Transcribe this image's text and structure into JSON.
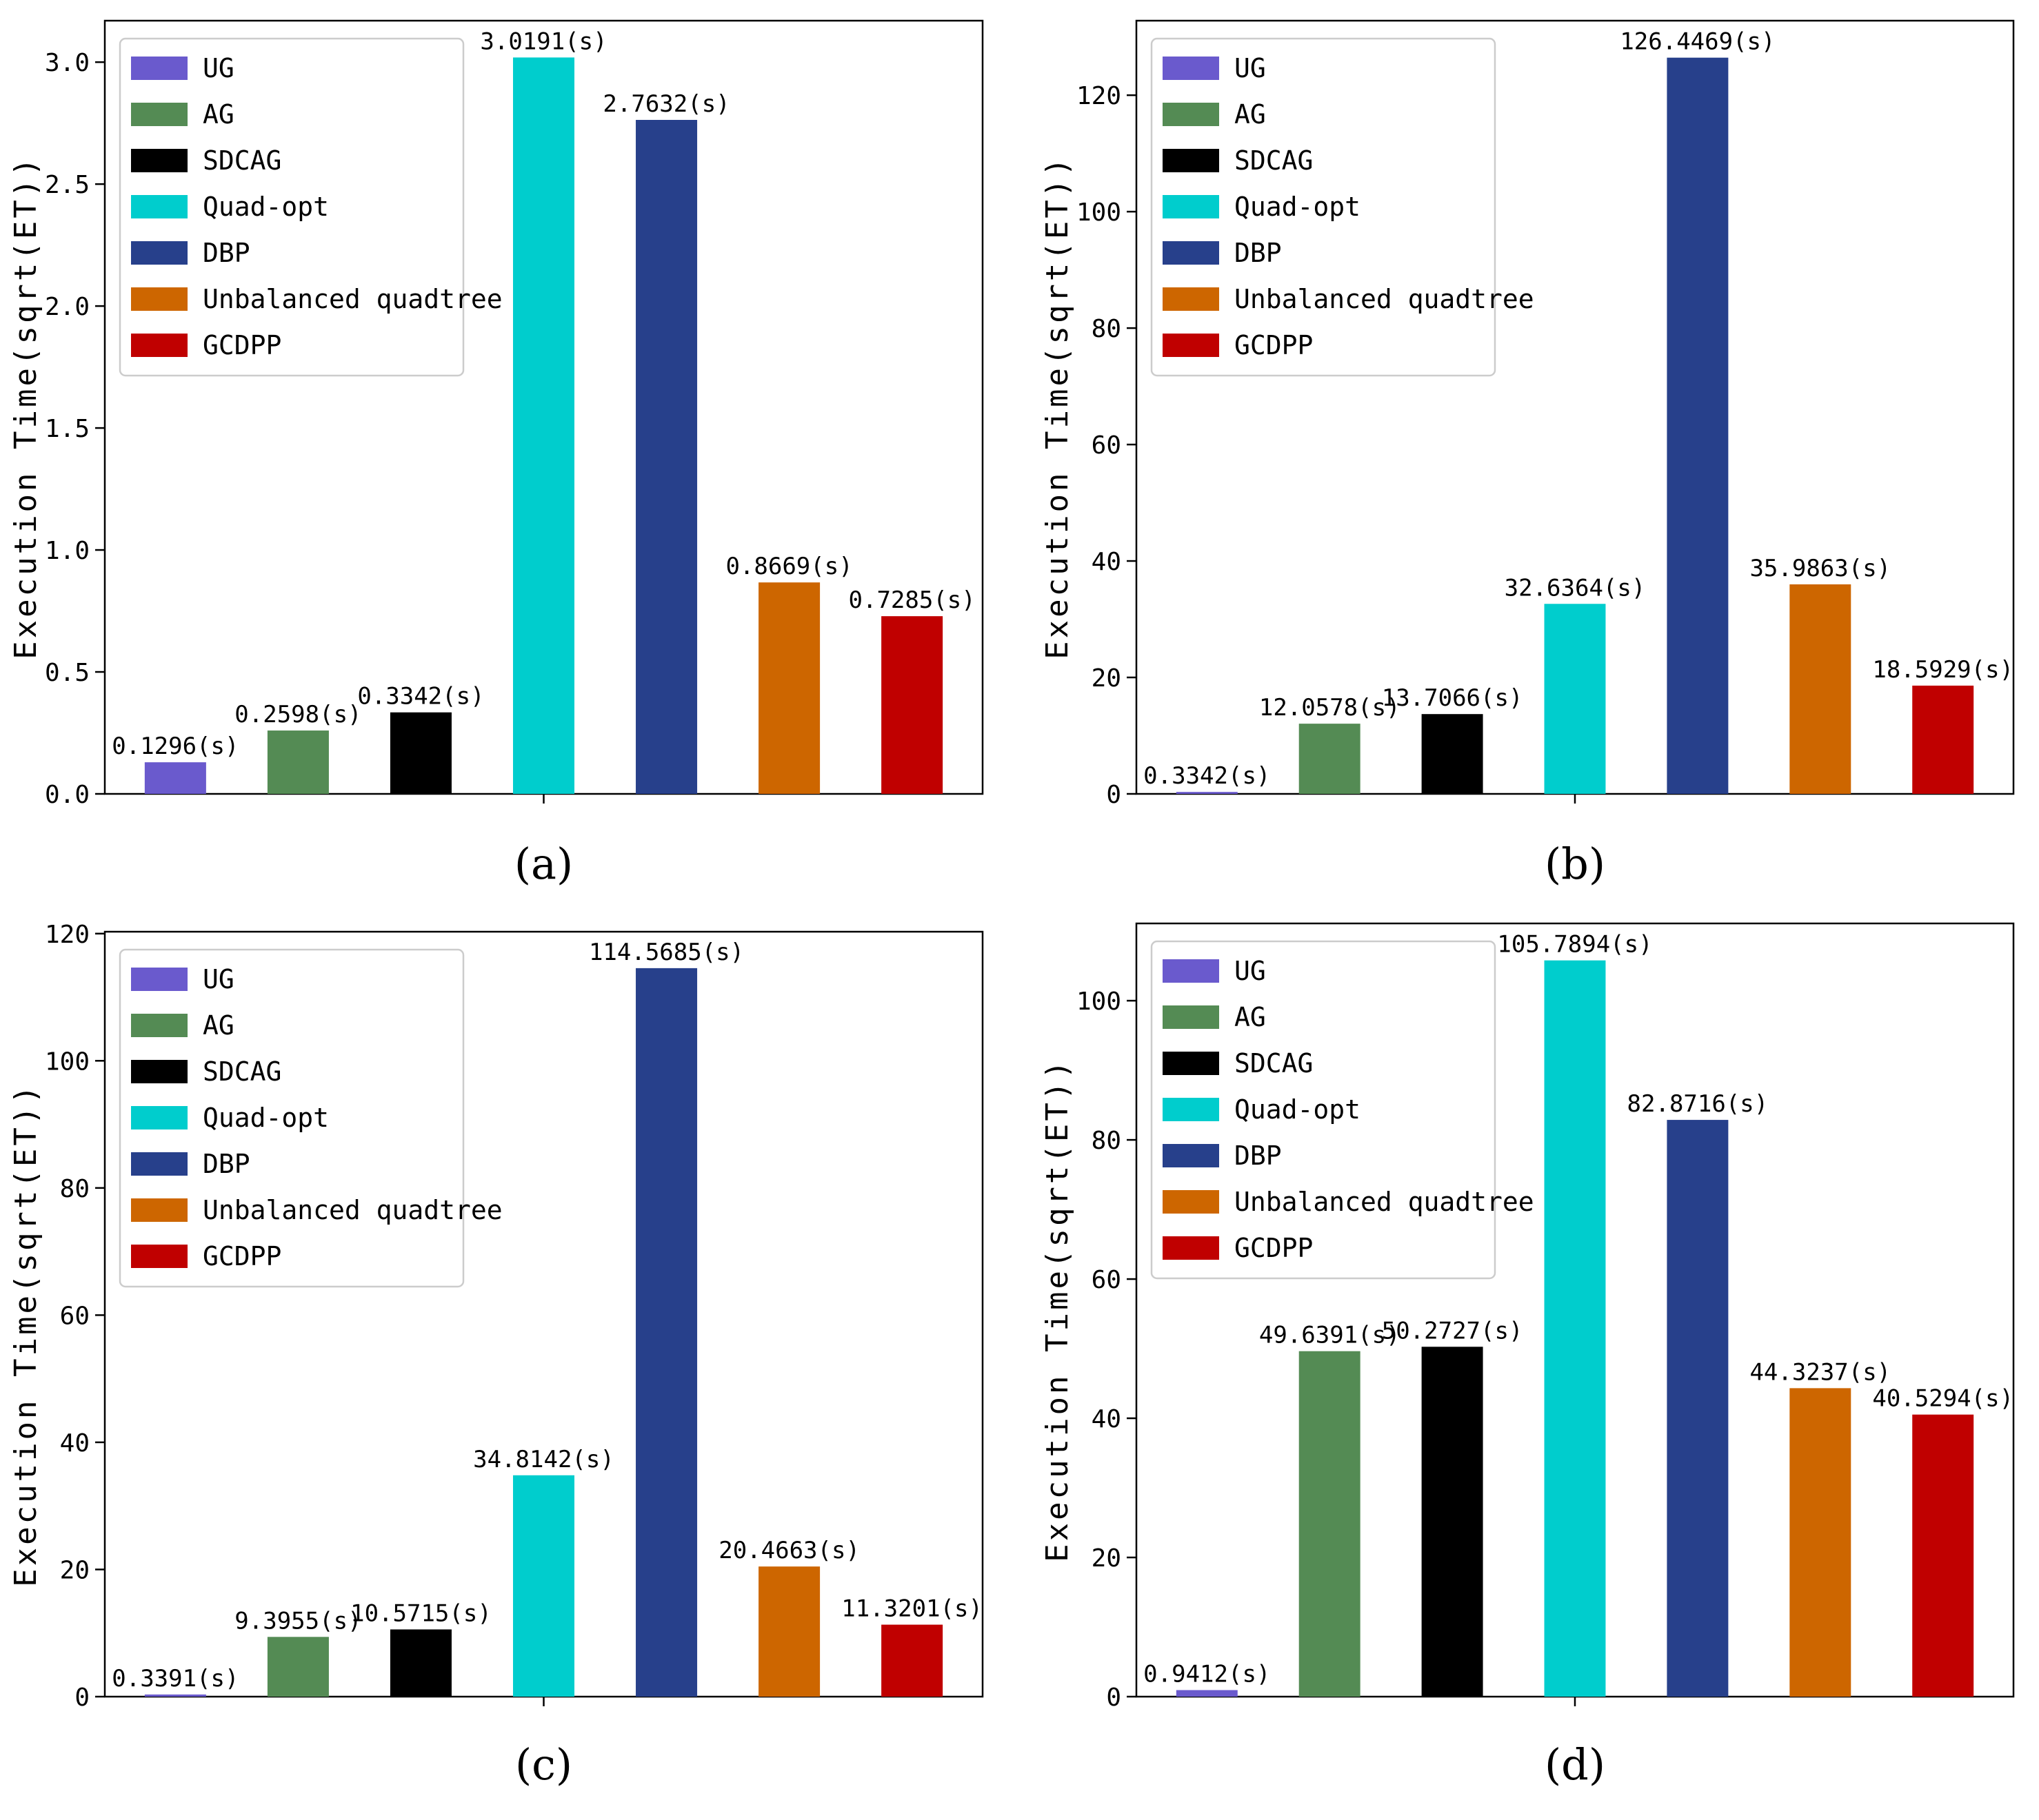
{
  "chart_data": [
    {
      "type": "bar",
      "panel_label": "(a)",
      "ylabel": "Execution Time(sqrt(ET))",
      "ylim": [
        0,
        3.17
      ],
      "yticks": [
        "0.0",
        "0.5",
        "1.0",
        "1.5",
        "2.0",
        "2.5",
        "3.0"
      ],
      "ytick_values": [
        0,
        0.5,
        1.0,
        1.5,
        2.0,
        2.5,
        3.0
      ],
      "grid": false,
      "legend_position": "top-left",
      "series": [
        {
          "name": "UG",
          "color": "#6a5acd",
          "value": 0.1296,
          "label": "0.1296(s)"
        },
        {
          "name": "AG",
          "color": "#548b54",
          "value": 0.2598,
          "label": "0.2598(s)"
        },
        {
          "name": "SDCAG",
          "color": "#000000",
          "value": 0.3342,
          "label": "0.3342(s)"
        },
        {
          "name": "Quad-opt",
          "color": "#00cdcd",
          "value": 3.0191,
          "label": "3.0191(s)"
        },
        {
          "name": "DBP",
          "color": "#27408b",
          "value": 2.7632,
          "label": "2.7632(s)"
        },
        {
          "name": "Unbalanced quadtree",
          "color": "#cd6600",
          "value": 0.8669,
          "label": "0.8669(s)"
        },
        {
          "name": "GCDPP",
          "color": "#c00000",
          "value": 0.7285,
          "label": "0.7285(s)"
        }
      ]
    },
    {
      "type": "bar",
      "panel_label": "(b)",
      "ylabel": "Execution Time(sqrt(ET))",
      "ylim": [
        0,
        132.8
      ],
      "yticks": [
        "0",
        "20",
        "40",
        "60",
        "80",
        "100",
        "120"
      ],
      "ytick_values": [
        0,
        20,
        40,
        60,
        80,
        100,
        120
      ],
      "grid": false,
      "legend_position": "top-left",
      "series": [
        {
          "name": "UG",
          "color": "#6a5acd",
          "value": 0.3342,
          "label": "0.3342(s)"
        },
        {
          "name": "AG",
          "color": "#548b54",
          "value": 12.0578,
          "label": "12.0578(s)"
        },
        {
          "name": "SDCAG",
          "color": "#000000",
          "value": 13.7066,
          "label": "13.7066(s)"
        },
        {
          "name": "Quad-opt",
          "color": "#00cdcd",
          "value": 32.6364,
          "label": "32.6364(s)"
        },
        {
          "name": "DBP",
          "color": "#27408b",
          "value": 126.4469,
          "label": "126.4469(s)"
        },
        {
          "name": "Unbalanced quadtree",
          "color": "#cd6600",
          "value": 35.9863,
          "label": "35.9863(s)"
        },
        {
          "name": "GCDPP",
          "color": "#c00000",
          "value": 18.5929,
          "label": "18.5929(s)"
        }
      ]
    },
    {
      "type": "bar",
      "panel_label": "(c)",
      "ylabel": "Execution Time(sqrt(ET))",
      "ylim": [
        0,
        120.3
      ],
      "yticks": [
        "0",
        "20",
        "40",
        "60",
        "80",
        "100",
        "120"
      ],
      "ytick_values": [
        0,
        20,
        40,
        60,
        80,
        100,
        120
      ],
      "grid": false,
      "legend_position": "top-left",
      "series": [
        {
          "name": "UG",
          "color": "#6a5acd",
          "value": 0.3391,
          "label": "0.3391(s)"
        },
        {
          "name": "AG",
          "color": "#548b54",
          "value": 9.3955,
          "label": "9.3955(s)"
        },
        {
          "name": "SDCAG",
          "color": "#000000",
          "value": 10.5715,
          "label": "10.5715(s)"
        },
        {
          "name": "Quad-opt",
          "color": "#00cdcd",
          "value": 34.8142,
          "label": "34.8142(s)"
        },
        {
          "name": "DBP",
          "color": "#27408b",
          "value": 114.5685,
          "label": "114.5685(s)"
        },
        {
          "name": "Unbalanced quadtree",
          "color": "#cd6600",
          "value": 20.4663,
          "label": "20.4663(s)"
        },
        {
          "name": "GCDPP",
          "color": "#c00000",
          "value": 11.3201,
          "label": "11.3201(s)"
        }
      ]
    },
    {
      "type": "bar",
      "panel_label": "(d)",
      "ylabel": "Execution Time(sqrt(ET))",
      "ylim": [
        0,
        111.1
      ],
      "yticks": [
        "0",
        "20",
        "40",
        "60",
        "80",
        "100"
      ],
      "ytick_values": [
        0,
        20,
        40,
        60,
        80,
        100
      ],
      "grid": false,
      "legend_position": "top-left",
      "series": [
        {
          "name": "UG",
          "color": "#6a5acd",
          "value": 0.9412,
          "label": "0.9412(s)"
        },
        {
          "name": "AG",
          "color": "#548b54",
          "value": 49.6391,
          "label": "49.6391(s)"
        },
        {
          "name": "SDCAG",
          "color": "#000000",
          "value": 50.2727,
          "label": "50.2727(s)"
        },
        {
          "name": "Quad-opt",
          "color": "#00cdcd",
          "value": 105.7894,
          "label": "105.7894(s)"
        },
        {
          "name": "DBP",
          "color": "#27408b",
          "value": 82.8716,
          "label": "82.8716(s)"
        },
        {
          "name": "Unbalanced quadtree",
          "color": "#cd6600",
          "value": 44.3237,
          "label": "44.3237(s)"
        },
        {
          "name": "GCDPP",
          "color": "#c00000",
          "value": 40.5294,
          "label": "40.5294(s)"
        }
      ]
    }
  ]
}
